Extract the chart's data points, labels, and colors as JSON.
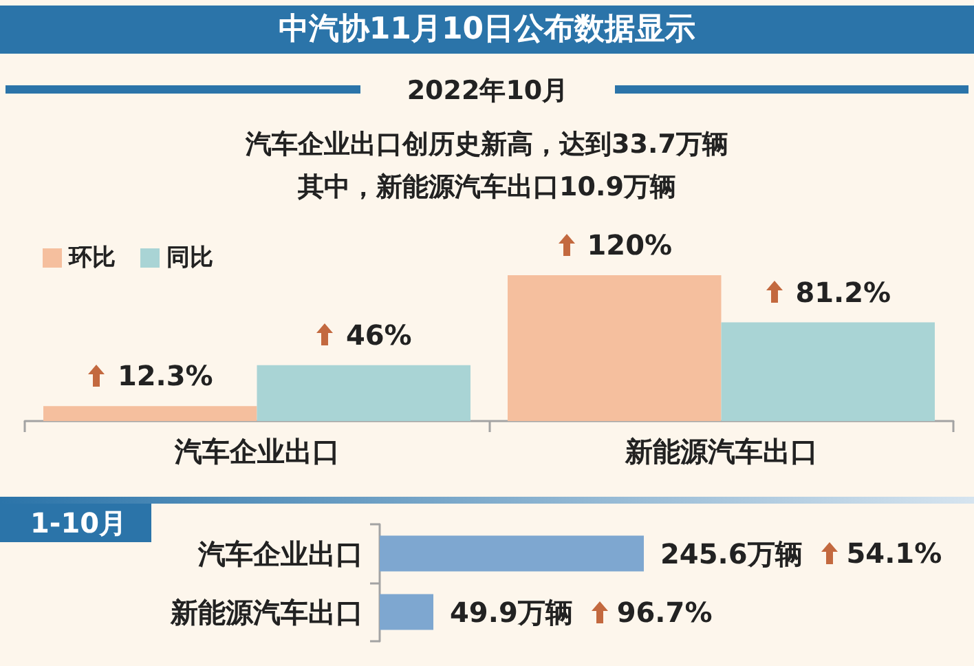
{
  "chart_data": [
    {
      "type": "bar",
      "title": "中汽协11月10日公布数据显示",
      "subtitle": "2022年10月",
      "annotations": [
        "汽车企业出口创历史新高，达到33.7万辆",
        "其中，新能源汽车出口10.9万辆"
      ],
      "categories": [
        "汽车企业出口",
        "新能源汽车出口"
      ],
      "series": [
        {
          "name": "环比",
          "color": "#f5bf9e",
          "values": [
            12.3,
            120
          ],
          "value_labels": [
            "12.3%",
            "120%"
          ]
        },
        {
          "name": "同比",
          "color": "#a9d4d5",
          "values": [
            46,
            81.2
          ],
          "value_labels": [
            "46%",
            "81.2%"
          ]
        }
      ],
      "legend": "top left"
    },
    {
      "type": "bar",
      "orientation": "horizontal",
      "title": "1-10月",
      "categories": [
        "汽车企业出口",
        "新能源汽车出口"
      ],
      "color": "#7ea7d0",
      "values": [
        245.6,
        49.9
      ],
      "value_labels": [
        "245.6万辆",
        "49.9万辆"
      ],
      "annotations": [
        "54.1%",
        "96.7%"
      ]
    }
  ]
}
